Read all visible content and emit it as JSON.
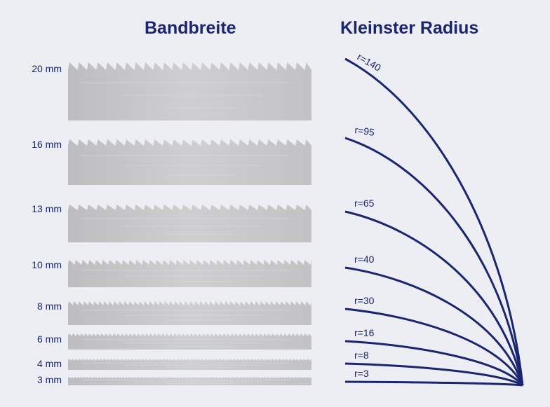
{
  "headings": {
    "width": "Bandbreite",
    "radius": "Kleinster Radius"
  },
  "colors": {
    "accent": "#1b2570",
    "background": "#eceef3",
    "blade": "#c6c6c8"
  },
  "blades": [
    {
      "label": "20 mm",
      "width_mm": 20
    },
    {
      "label": "16 mm",
      "width_mm": 16
    },
    {
      "label": "13 mm",
      "width_mm": 13
    },
    {
      "label": "10 mm",
      "width_mm": 10
    },
    {
      "label": "8 mm",
      "width_mm": 8
    },
    {
      "label": "6 mm",
      "width_mm": 6
    },
    {
      "label": "4 mm",
      "width_mm": 4
    },
    {
      "label": "3 mm",
      "width_mm": 3
    }
  ],
  "radii": [
    {
      "label": "r=140",
      "value": 140
    },
    {
      "label": "r=95",
      "value": 95
    },
    {
      "label": "r=65",
      "value": 65
    },
    {
      "label": "r=40",
      "value": 40
    },
    {
      "label": "r=30",
      "value": 30
    },
    {
      "label": "r=16",
      "value": 16
    },
    {
      "label": "r=8",
      "value": 8
    },
    {
      "label": "r=3",
      "value": 3
    }
  ]
}
